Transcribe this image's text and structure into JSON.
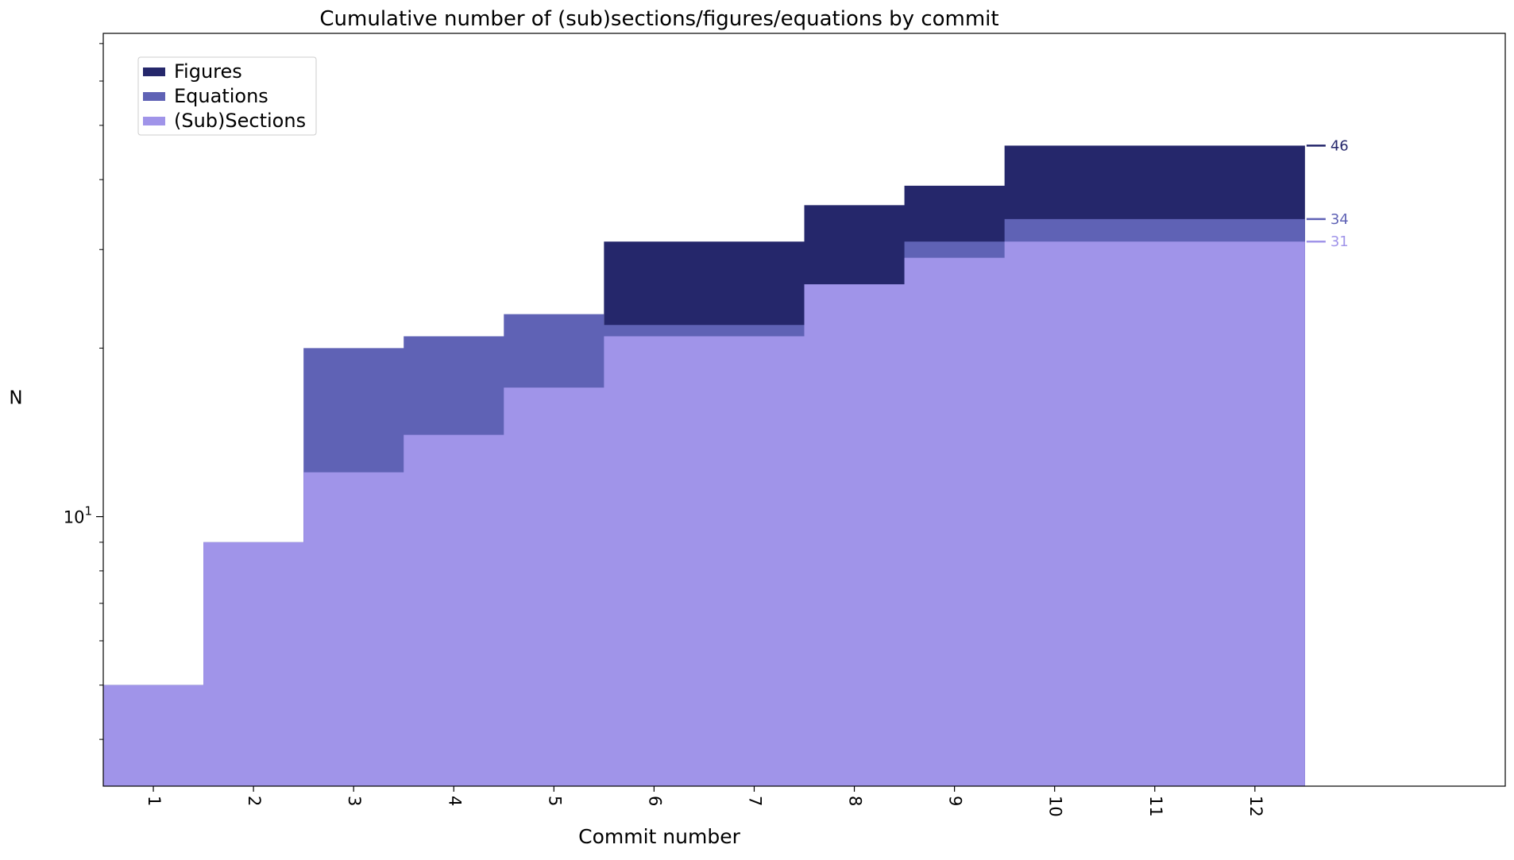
{
  "chart_data": {
    "type": "area",
    "title": "Cumulative number of (sub)sections/figures/equations by commit",
    "xlabel": "Commit number",
    "ylabel": "N",
    "yscale": "log",
    "ylim": [
      3.3,
      73
    ],
    "categories": [
      "1",
      "2",
      "3",
      "4",
      "5",
      "6",
      "7",
      "8",
      "9",
      "10",
      "11",
      "12"
    ],
    "y_tick_label": {
      "base": "10",
      "exp": "1",
      "value": 10
    },
    "series": [
      {
        "name": "Figures",
        "color": "#25276b",
        "values": [
          5,
          9,
          12,
          14,
          17,
          31,
          31,
          36,
          39,
          46,
          46,
          46
        ]
      },
      {
        "name": "Equations",
        "color": "#5f62b5",
        "values": [
          5,
          9,
          20,
          21,
          23,
          22,
          22,
          26,
          31,
          34,
          34,
          34
        ]
      },
      {
        "name": "(Sub)Sections",
        "color": "#a094e9",
        "values": [
          5,
          9,
          12,
          14,
          17,
          21,
          21,
          26,
          29,
          31,
          31,
          31
        ]
      }
    ],
    "end_labels": [
      {
        "series": "Figures",
        "text": "46"
      },
      {
        "series": "Equations",
        "text": "34"
      },
      {
        "series": "(Sub)Sections",
        "text": "31"
      }
    ],
    "legend_position": "top-left",
    "grid": false
  }
}
